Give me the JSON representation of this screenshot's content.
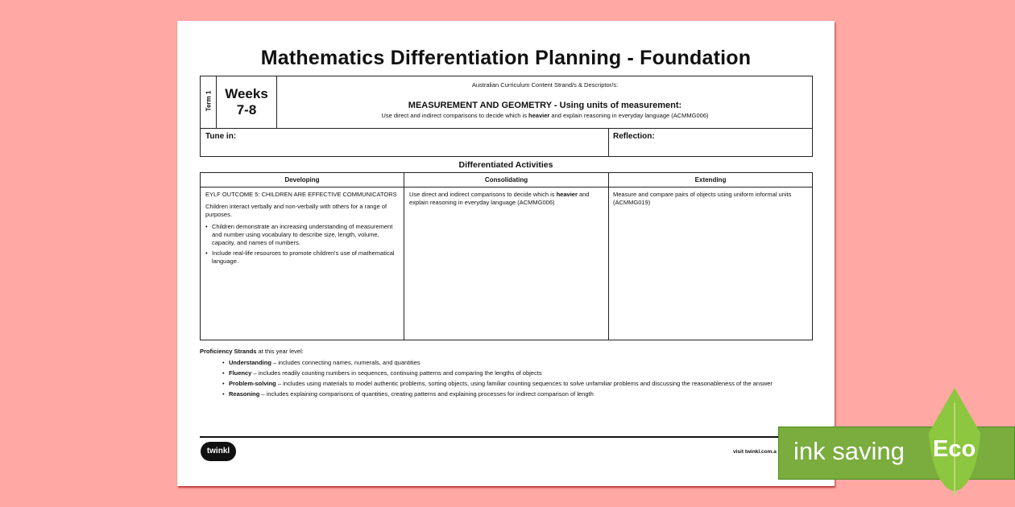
{
  "title": "Mathematics Differentiation Planning - Foundation",
  "header": {
    "term": "Term 1",
    "weeks_line1": "Weeks",
    "weeks_line2": "7-8",
    "curriculum_label": "Australian Curriculum Content Strand/s & Descriptor/s:",
    "strand": "MEASUREMENT AND GEOMETRY - Using units of measurement:",
    "descriptor_pre": "Use direct and indirect comparisons to decide which is ",
    "descriptor_bold": "heavier",
    "descriptor_post": " and explain reasoning in everyday language (ACMMG006)"
  },
  "tune_in": "Tune in:",
  "reflection": "Reflection:",
  "activities": {
    "heading": "Differentiated Activities",
    "columns": [
      "Developing",
      "Consolidating",
      "Extending"
    ],
    "developing": {
      "outcome": "EYLF OUTCOME 5: CHILDREN ARE EFFECTIVE COMMUNICATORS",
      "intro": "Children interact verbally and non-verbally with others for a range of purposes.",
      "bullets": [
        "Children demonstrate an increasing understanding of measurement and number using vocabulary to describe size, length, volume, capacity, and names of numbers.",
        "Include real-life resources to promote children's use of mathematical language."
      ]
    },
    "consolidating": {
      "pre": "Use direct and indirect comparisons to decide which is ",
      "bold": "heavier",
      "post": " and explain reasoning in everyday language (ACMMG006)"
    },
    "extending": "Measure and compare pairs of objects using uniform informal units (ACMMG019)"
  },
  "proficiency": {
    "heading_bold": "Proficiency Strands",
    "heading_rest": " at this year level:",
    "items": [
      {
        "term": "Understanding",
        "text": " – includes connecting names, numerals, and quantities"
      },
      {
        "term": "Fluency",
        "text": " – includes readily counting numbers in sequences, continuing patterns and comparing the lengths of objects"
      },
      {
        "term": "Problem-solving",
        "text": " – includes using materials to model authentic problems, sorting objects, using familiar counting sequences to solve unfamiliar problems and discussing the reasonableness of the answer"
      },
      {
        "term": "Reasoning",
        "text": " – includes explaining comparisons of quantities, creating patterns and explaining processes for indirect comparison of length"
      }
    ]
  },
  "footer": {
    "logo": "twinkl",
    "visit": "visit twinkl.com.a"
  },
  "eco": {
    "label": "ink saving",
    "badge": "Eco",
    "colors": {
      "banner": "#7aac3e",
      "leaf": "#8dc63f"
    }
  }
}
